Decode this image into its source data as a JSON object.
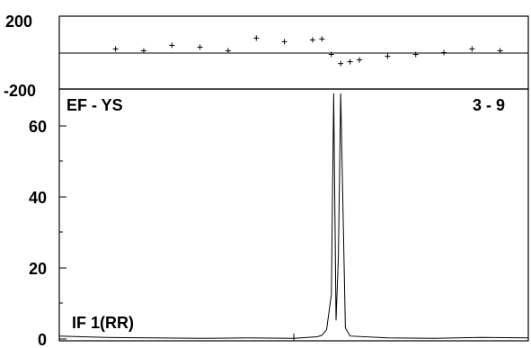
{
  "chart_data": [
    {
      "type": "scatter",
      "panel": "phase",
      "ylim": [
        -200,
        200
      ],
      "y_ticks": [
        "200",
        "-200"
      ],
      "description_of_points": "phase scatter spanning full range; concentration of points near zero on both sides of the peak",
      "series": [
        {
          "x": [
            0.12,
            0.18,
            0.24,
            0.3,
            0.36,
            0.42,
            0.48,
            0.54,
            0.56,
            0.58,
            0.6,
            0.62,
            0.64,
            0.7,
            0.76,
            0.82,
            0.88,
            0.94
          ],
          "y": [
            20,
            10,
            40,
            30,
            10,
            80,
            60,
            70,
            75,
            -10,
            -60,
            -50,
            -40,
            -20,
            -10,
            0,
            20,
            10
          ]
        }
      ]
    },
    {
      "type": "line",
      "panel": "spectrum",
      "ylim": [
        0,
        65
      ],
      "y_ticks": [
        "0",
        "20",
        "40",
        "60"
      ],
      "annotations": {
        "top_left": "EF - YS",
        "top_right": "3 - 9",
        "bottom_left": "IF 1(RR)"
      },
      "series": [
        {
          "x": [
            0,
            0.1,
            0.2,
            0.3,
            0.4,
            0.5,
            0.55,
            0.56,
            0.57,
            0.58,
            0.585,
            0.59,
            0.595,
            0.6,
            0.61,
            0.62,
            0.7,
            0.8,
            0.9,
            1.0
          ],
          "y": [
            0.8,
            0.4,
            0.3,
            0.2,
            0.3,
            0.2,
            0.6,
            1.0,
            2.5,
            12,
            66,
            5,
            22,
            66,
            3,
            0.8,
            0.3,
            0.2,
            0.4,
            0.3
          ]
        }
      ]
    }
  ]
}
